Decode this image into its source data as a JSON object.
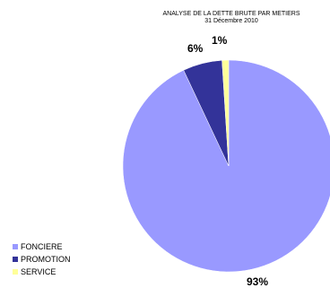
{
  "chart_data": {
    "type": "pie",
    "title": "ANALYSE DE LA DETTE BRUTE PAR METIERS",
    "subtitle": "31 Décembre 2010",
    "categories": [
      "FONCIERE",
      "PROMOTION",
      "SERVICE"
    ],
    "values": [
      93,
      6,
      1
    ],
    "labels": [
      "93%",
      "6%",
      "1%"
    ],
    "colors": [
      "#9999ff",
      "#333399",
      "#ffff99"
    ],
    "legend_position": "bottom-left"
  }
}
